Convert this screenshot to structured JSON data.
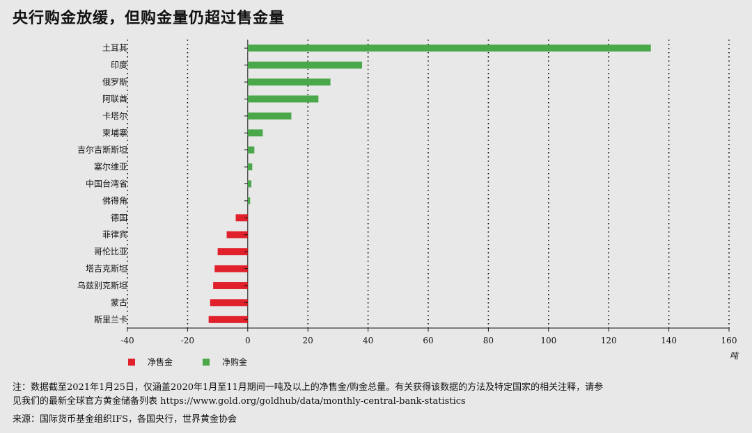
{
  "title": "央行购金放缓，但购金量仍超过售金量",
  "chart_data": {
    "type": "bar",
    "orientation": "horizontal",
    "categories": [
      "土耳其",
      "印度",
      "俄罗斯",
      "阿联酋",
      "卡塔尔",
      "柬埔寨",
      "吉尔吉斯斯坦",
      "塞尔维亚",
      "中国台湾省",
      "佛得角",
      "德国",
      "菲律宾",
      "哥伦比亚",
      "塔吉克斯坦",
      "乌兹别克斯坦",
      "蒙古",
      "斯里兰卡"
    ],
    "values": [
      134,
      38,
      27.5,
      23.5,
      14.5,
      5,
      2.2,
      1.5,
      1.2,
      0.8,
      -4,
      -7,
      -10,
      -11,
      -11.5,
      -12.5,
      -13
    ],
    "xlim": [
      -40,
      160
    ],
    "x_ticks": [
      "-40",
      "-20",
      "0",
      "20",
      "40",
      "60",
      "80",
      "100",
      "120",
      "140",
      "160"
    ],
    "x_unit": "吨",
    "grid": "vertical-dotted",
    "legend": [
      {
        "label": "净售金",
        "color": "#e0202a"
      },
      {
        "label": "净购金",
        "color": "#4aa84a"
      }
    ],
    "colors": {
      "positive": "#4aa84a",
      "negative": "#e0202a"
    }
  },
  "notes": {
    "line1": "注：数据截至2021年1月25日，仅涵盖2020年1月至11月期间一吨及以上的净售金/购金总量。有关获得该数据的方法及特定国家的相关注释，请参",
    "line2": "见我们的最新全球官方黄金储备列表 https://www.gold.org/goldhub/data/monthly-central-bank-statistics",
    "source": "来源：国际货币基金组织IFS，各国央行，世界黄金协会"
  }
}
